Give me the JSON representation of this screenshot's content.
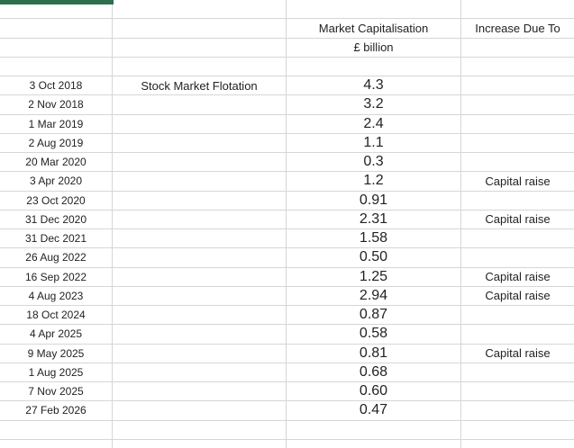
{
  "sheet": {
    "accent_green": "#2e6f4e",
    "gridline_color": "#d6d6d6",
    "text_color": "#222222"
  },
  "headers": {
    "market_cap_title": "Market Capitalisation",
    "market_cap_unit": "£ billion",
    "increase_title": "Increase Due To"
  },
  "table": {
    "rows": [
      {
        "date": "3 Oct 2018",
        "note": "Stock Market Flotation",
        "value": "4.3",
        "increase": ""
      },
      {
        "date": "2 Nov 2018",
        "note": "",
        "value": "3.2",
        "increase": ""
      },
      {
        "date": "1 Mar 2019",
        "note": "",
        "value": "2.4",
        "increase": ""
      },
      {
        "date": "2 Aug 2019",
        "note": "",
        "value": "1.1",
        "increase": ""
      },
      {
        "date": "20 Mar 2020",
        "note": "",
        "value": "0.3",
        "increase": ""
      },
      {
        "date": "3 Apr 2020",
        "note": "",
        "value": "1.2",
        "increase": "Capital raise"
      },
      {
        "date": "23 Oct 2020",
        "note": "",
        "value": "0.91",
        "increase": ""
      },
      {
        "date": "31 Dec 2020",
        "note": "",
        "value": "2.31",
        "increase": "Capital raise"
      },
      {
        "date": "31 Dec 2021",
        "note": "",
        "value": "1.58",
        "increase": ""
      },
      {
        "date": "26 Aug 2022",
        "note": "",
        "value": "0.50",
        "increase": ""
      },
      {
        "date": "16 Sep 2022",
        "note": "",
        "value": "1.25",
        "increase": "Capital raise"
      },
      {
        "date": "4 Aug 2023",
        "note": "",
        "value": "2.94",
        "increase": "Capital raise"
      },
      {
        "date": "18 Oct 2024",
        "note": "",
        "value": "0.87",
        "increase": ""
      },
      {
        "date": "4 Apr 2025",
        "note": "",
        "value": "0.58",
        "increase": ""
      },
      {
        "date": "9 May 2025",
        "note": "",
        "value": "0.81",
        "increase": "Capital raise"
      },
      {
        "date": "1 Aug 2025",
        "note": "",
        "value": "0.68",
        "increase": ""
      },
      {
        "date": "7 Nov 2025",
        "note": "",
        "value": "0.60",
        "increase": ""
      },
      {
        "date": "27 Feb 2026",
        "note": "",
        "value": "0.47",
        "increase": ""
      }
    ]
  }
}
